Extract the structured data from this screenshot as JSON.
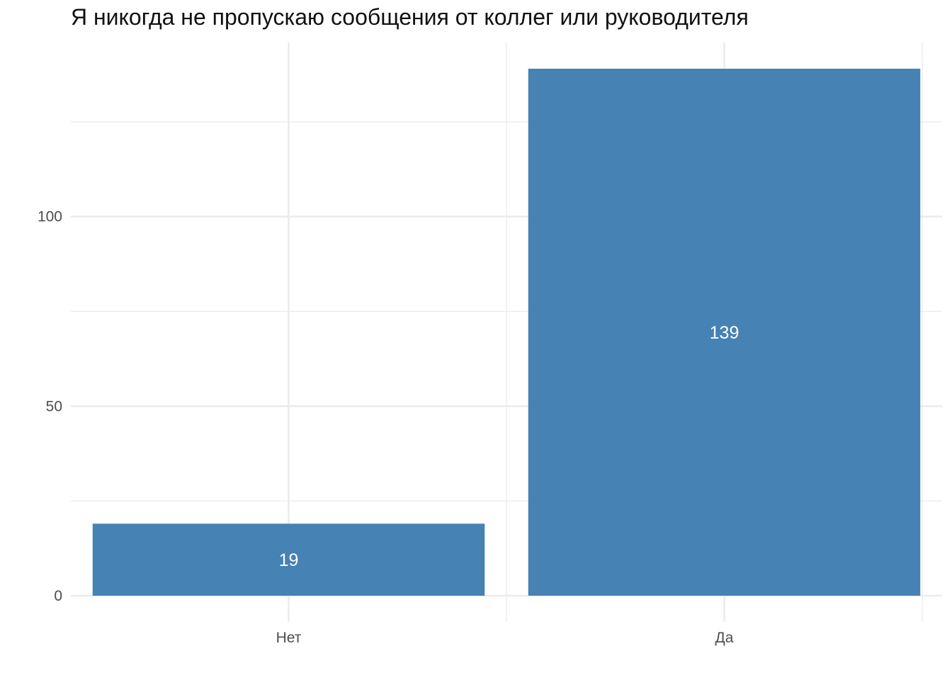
{
  "chart_data": {
    "type": "bar",
    "title": "Я никогда не пропускаю сообщения от коллег или руководителя",
    "categories": [
      "Нет",
      "Да"
    ],
    "values": [
      19,
      139
    ],
    "xlabel": "",
    "ylabel": "",
    "ylim": [
      0,
      139
    ],
    "y_ticks": [
      0,
      50,
      100
    ],
    "y_minor_ticks": [
      25,
      75,
      125
    ],
    "grid": true,
    "legend": "none",
    "bar_color": "#4682b4",
    "grid_color": "#ebebeb"
  }
}
